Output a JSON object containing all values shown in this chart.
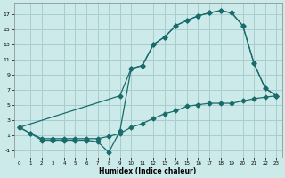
{
  "xlabel": "Humidex (Indice chaleur)",
  "bg_color": "#cceaea",
  "grid_color": "#aacccc",
  "line_color": "#1a6b6b",
  "xlim": [
    -0.5,
    23.5
  ],
  "ylim": [
    -2.0,
    18.5
  ],
  "xticks": [
    0,
    1,
    2,
    3,
    4,
    5,
    6,
    7,
    8,
    9,
    10,
    11,
    12,
    13,
    14,
    15,
    16,
    17,
    18,
    19,
    20,
    21,
    22,
    23
  ],
  "yticks": [
    -1,
    1,
    3,
    5,
    7,
    9,
    11,
    13,
    15,
    17
  ],
  "line1_x": [
    0,
    1,
    2,
    3,
    4,
    5,
    6,
    7,
    8,
    9,
    10,
    11,
    12,
    13,
    14,
    15,
    16,
    17,
    18,
    19,
    20,
    21,
    22,
    23
  ],
  "line1_y": [
    2.0,
    1.2,
    0.5,
    0.5,
    0.5,
    0.5,
    0.5,
    0.5,
    0.8,
    1.2,
    2.0,
    2.5,
    3.2,
    3.8,
    4.2,
    4.8,
    5.0,
    5.2,
    5.2,
    5.2,
    5.5,
    5.8,
    6.0,
    6.2
  ],
  "line2_x": [
    0,
    1,
    2,
    3,
    4,
    5,
    6,
    7,
    8,
    9,
    10,
    11,
    12,
    13,
    14,
    15,
    16,
    17,
    18,
    19,
    20,
    21,
    22,
    23
  ],
  "line2_y": [
    2.0,
    1.2,
    0.3,
    0.3,
    0.3,
    0.3,
    0.3,
    0.1,
    -1.3,
    1.5,
    9.8,
    10.2,
    13.0,
    14.0,
    15.5,
    16.2,
    16.8,
    17.2,
    17.5,
    17.2,
    15.5,
    10.5,
    7.2,
    6.2
  ],
  "line3_x": [
    0,
    9,
    10,
    11,
    12,
    13,
    14,
    15,
    16,
    17,
    18,
    19,
    20,
    21,
    22,
    23
  ],
  "line3_y": [
    2.0,
    6.2,
    9.8,
    10.2,
    13.0,
    14.0,
    15.5,
    16.2,
    16.8,
    17.2,
    17.5,
    17.2,
    15.5,
    10.5,
    7.2,
    6.2
  ]
}
